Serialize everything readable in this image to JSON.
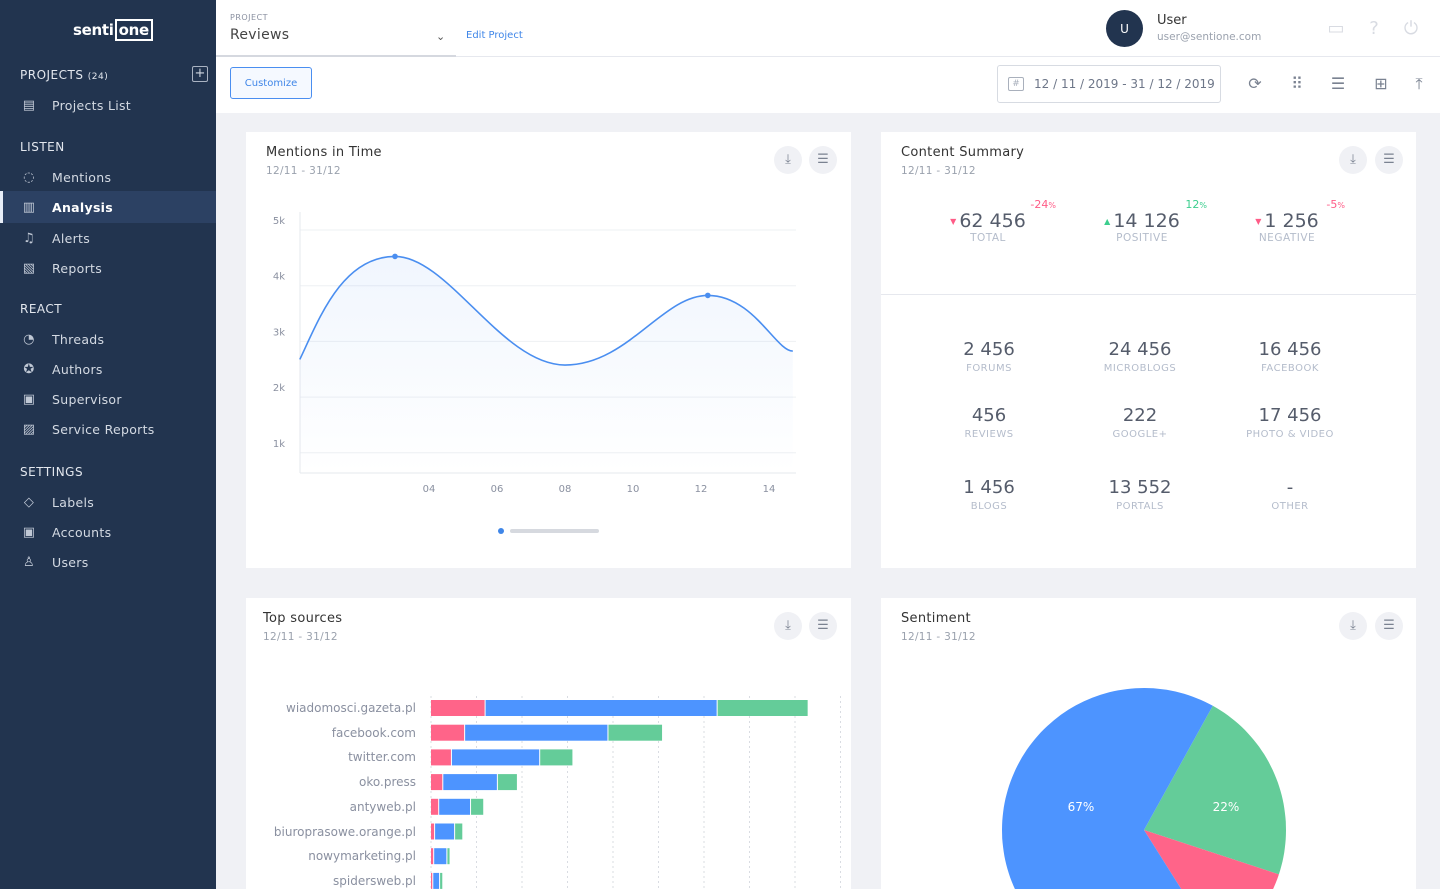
{
  "sidebar": {
    "logo": {
      "left": "senti",
      "right": "one"
    },
    "projects_label": "PROJECTS",
    "projects_count": "(24)",
    "sections": {
      "listen": "LISTEN",
      "react": "REACT",
      "settings": "SETTINGS"
    },
    "items": [
      {
        "label": "Projects List",
        "icon": "projects-icon"
      },
      {
        "label": "Mentions",
        "icon": "chat-icon"
      },
      {
        "label": "Analysis",
        "icon": "bar-chart-icon",
        "active": true
      },
      {
        "label": "Alerts",
        "icon": "bell-icon"
      },
      {
        "label": "Reports",
        "icon": "report-icon"
      },
      {
        "label": "Threads",
        "icon": "threads-icon"
      },
      {
        "label": "Authors",
        "icon": "star-icon"
      },
      {
        "label": "Supervisor",
        "icon": "supervisor-icon"
      },
      {
        "label": "Service Reports",
        "icon": "service-report-icon"
      },
      {
        "label": "Labels",
        "icon": "tag-icon"
      },
      {
        "label": "Accounts",
        "icon": "accounts-icon"
      },
      {
        "label": "Users",
        "icon": "user-icon"
      }
    ]
  },
  "header": {
    "project_label": "PROJECT",
    "project_value": "Reviews",
    "edit_project": "Edit Project",
    "user_initial": "U",
    "user_name": "User",
    "user_email": "user@sentione.com"
  },
  "toolbar": {
    "customize": "Customize",
    "date_range": "12 / 11 / 2019 - 31 / 12 / 2019"
  },
  "cards": {
    "mentions": {
      "title": "Mentions in Time",
      "date": "12/11  - 31/12"
    },
    "content": {
      "title": "Content Summary",
      "date": "12/11  - 31/12",
      "kpis": [
        {
          "value": "62 456",
          "label": "TOTAL",
          "change": "-24",
          "trend": "down",
          "color": "#ff5c87"
        },
        {
          "value": "14 126",
          "label": "POSITIVE",
          "change": "12",
          "trend": "up",
          "color": "#3cce8e"
        },
        {
          "value": "1 256",
          "label": "NEGATIVE",
          "change": "-5",
          "trend": "down",
          "color": "#ff5c87"
        }
      ],
      "stats": [
        {
          "value": "2 456",
          "label": "FORUMS"
        },
        {
          "value": "24 456",
          "label": "MICROBLOGS"
        },
        {
          "value": "16 456",
          "label": "FACEBOOK"
        },
        {
          "value": "456",
          "label": "REVIEWS"
        },
        {
          "value": "222",
          "label": "GOOGLE+"
        },
        {
          "value": "17 456",
          "label": "PHOTO & VIDEO"
        },
        {
          "value": "1 456",
          "label": "BLOGS"
        },
        {
          "value": "13 552",
          "label": "PORTALS"
        },
        {
          "value": "-",
          "label": "OTHER"
        }
      ]
    },
    "sources": {
      "title": "Top sources",
      "date": "12/11  - 31/12"
    },
    "sentiment": {
      "title": "Sentiment",
      "date": "12/11  - 31/12"
    }
  },
  "chart_data": [
    {
      "type": "line",
      "y_ticks": [
        "5k",
        "4k",
        "3k",
        "2k",
        "1k"
      ],
      "x_ticks": [
        "04",
        "06",
        "08",
        "10",
        "12",
        "14"
      ],
      "x": [
        0.2,
        3,
        8,
        12.2,
        14.7
      ],
      "y": [
        2500,
        4350,
        2400,
        3650,
        2650
      ],
      "ylim": [
        550,
        5000
      ],
      "color": "#4a8ef0",
      "grid": true
    },
    {
      "type": "bar",
      "stacked": true,
      "orientation": "horizontal",
      "categories": [
        "wiadomosci.gazeta.pl",
        "facebook.com",
        "twitter.com",
        "oko.press",
        "antyweb.pl",
        "biuroprasowe.orange.pl",
        "nowymarketing.pl",
        "spidersweb.pl"
      ],
      "series": [
        {
          "color": "#ff6489",
          "values": [
            12,
            7.5,
            4.6,
            2.7,
            1.8,
            0.9,
            0.7,
            0.5
          ]
        },
        {
          "color": "#4d94ff",
          "values": [
            51,
            31.5,
            19.4,
            12,
            7,
            4.4,
            2.9,
            1.5
          ]
        },
        {
          "color": "#64cc99",
          "values": [
            20,
            12,
            7.3,
            4.4,
            2.9,
            1.8,
            0.7,
            0.7
          ]
        }
      ],
      "grid": true
    },
    {
      "type": "pie",
      "slices": [
        {
          "label": "22%",
          "value": 22,
          "color": "#64cc99"
        },
        {
          "label": "",
          "value": 11,
          "color": "#ff6489"
        },
        {
          "label": "67%",
          "value": 67,
          "color": "#4d94ff"
        }
      ]
    }
  ]
}
